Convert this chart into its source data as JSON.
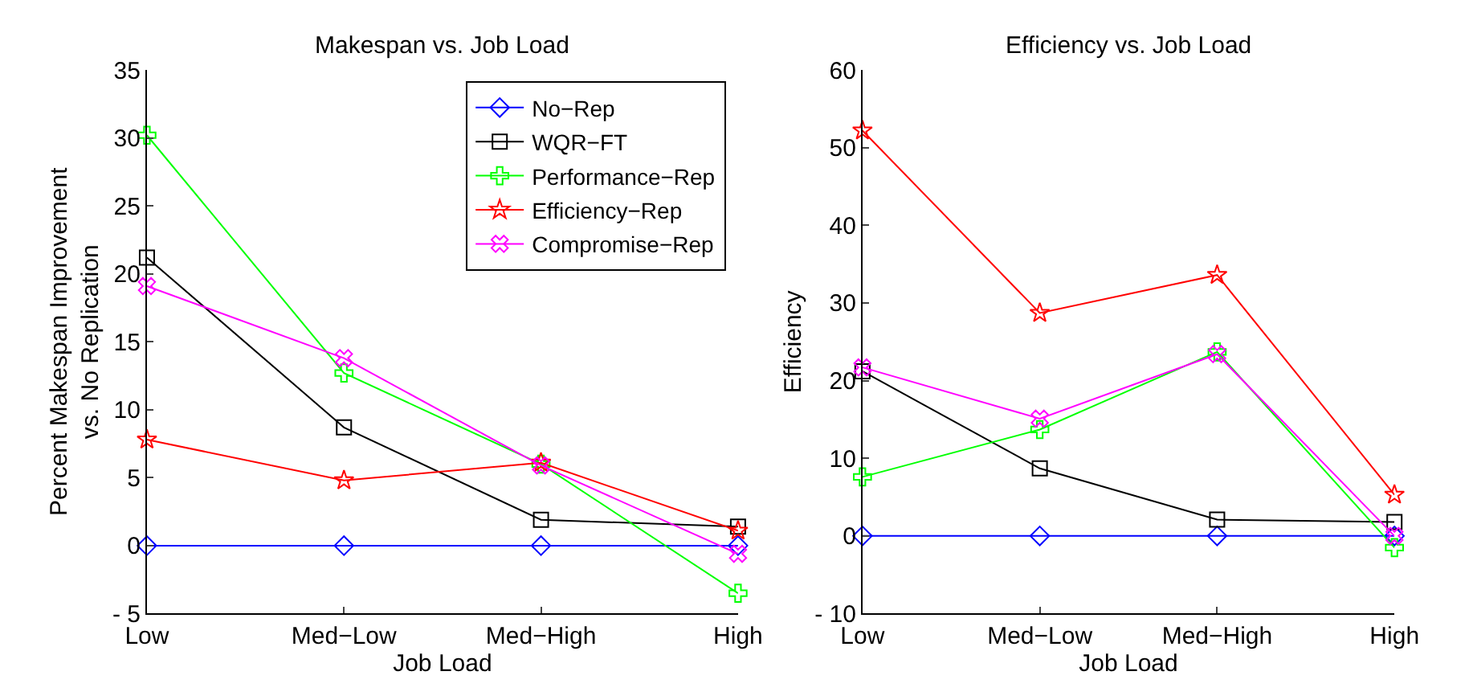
{
  "chart_data": [
    {
      "type": "line",
      "title": "Makespan vs. Job Load",
      "xlabel": "Job Load",
      "ylabel": "Percent Makespan Improvement\nvs. No Replication",
      "categories": [
        "Low",
        "Med−Low",
        "Med−High",
        "High"
      ],
      "ylim": [
        -5,
        35
      ],
      "yticks": [
        {
          "value": -5,
          "label": "- 5"
        },
        0,
        5,
        10,
        15,
        20,
        25,
        30,
        35
      ],
      "legend": "top right",
      "series": [
        {
          "name": "No−Rep",
          "color": "#0000ff",
          "marker": "diamond",
          "values": [
            0,
            0,
            0,
            0
          ]
        },
        {
          "name": "WQR−FT",
          "color": "#000000",
          "marker": "square",
          "values": [
            21.2,
            8.7,
            1.9,
            1.4
          ]
        },
        {
          "name": "Performance−Rep",
          "color": "#00ff00",
          "marker": "plus",
          "values": [
            30.2,
            12.7,
            6,
            -3.5
          ]
        },
        {
          "name": "Efficiency−Rep",
          "color": "#ff0000",
          "marker": "star",
          "values": [
            7.8,
            4.8,
            6.1,
            1.1
          ]
        },
        {
          "name": "Compromise−Rep",
          "color": "#ff00ff",
          "marker": "cross",
          "values": [
            19.1,
            13.8,
            5.9,
            -0.6
          ]
        }
      ]
    },
    {
      "type": "line",
      "title": "Efficiency vs. Job Load",
      "xlabel": "Job Load",
      "ylabel": "Efficiency",
      "categories": [
        "Low",
        "Med−Low",
        "Med−High",
        "High"
      ],
      "ylim": [
        -10,
        60
      ],
      "yticks": [
        {
          "value": -10,
          "label": "- 10"
        },
        0,
        10,
        20,
        30,
        40,
        50,
        60
      ],
      "legend": false,
      "series": [
        {
          "color": "#0000ff",
          "marker": "diamond",
          "values": [
            0,
            0,
            0,
            0
          ]
        },
        {
          "color": "#000000",
          "marker": "square",
          "values": [
            21.2,
            8.7,
            2.1,
            1.8
          ]
        },
        {
          "color": "#00ff00",
          "marker": "plus",
          "values": [
            7.6,
            13.7,
            23.7,
            -1.5
          ]
        },
        {
          "color": "#ff0000",
          "marker": "star",
          "values": [
            52.2,
            28.7,
            33.6,
            5.3
          ]
        },
        {
          "color": "#ff00ff",
          "marker": "cross",
          "values": [
            21.7,
            15.1,
            23.4,
            0
          ]
        }
      ]
    }
  ]
}
